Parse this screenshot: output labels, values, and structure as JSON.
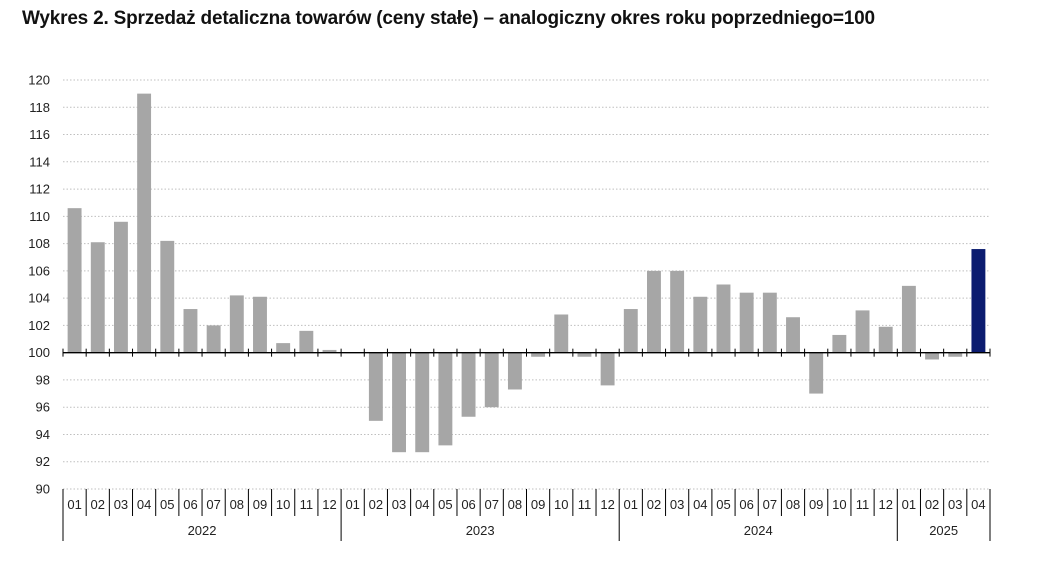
{
  "chart_data": {
    "type": "bar",
    "title": "Wykres 2. Sprzedaż detaliczna towarów (ceny stałe) – analogiczny okres roku poprzedniego=100",
    "baseline": 100,
    "ylim": [
      90,
      120
    ],
    "ytick_step": 2,
    "grid": true,
    "colors": {
      "bar": "#a6a6a6",
      "highlight": "#0c1c70",
      "grid": "#bfbfbf",
      "axis": "#000000"
    },
    "highlight_last": true,
    "years": [
      {
        "label": "2022",
        "months": [
          "01",
          "02",
          "03",
          "04",
          "05",
          "06",
          "07",
          "08",
          "09",
          "10",
          "11",
          "12"
        ]
      },
      {
        "label": "2023",
        "months": [
          "01",
          "02",
          "03",
          "04",
          "05",
          "06",
          "07",
          "08",
          "09",
          "10",
          "11",
          "12"
        ]
      },
      {
        "label": "2024",
        "months": [
          "01",
          "02",
          "03",
          "04",
          "05",
          "06",
          "07",
          "08",
          "09",
          "10",
          "11",
          "12"
        ]
      },
      {
        "label": "2025",
        "months": [
          "01",
          "02",
          "03",
          "04"
        ]
      }
    ],
    "values": [
      110.6,
      108.1,
      109.6,
      119.0,
      108.2,
      103.2,
      102.0,
      104.2,
      104.1,
      100.7,
      101.6,
      100.2,
      100.0,
      95.0,
      92.7,
      92.7,
      93.2,
      95.3,
      96.0,
      97.3,
      99.7,
      102.8,
      99.7,
      97.6,
      103.2,
      106.0,
      106.0,
      104.1,
      105.0,
      104.4,
      104.4,
      102.6,
      97.0,
      101.3,
      103.1,
      101.9,
      104.9,
      99.5,
      99.7,
      107.6
    ]
  }
}
